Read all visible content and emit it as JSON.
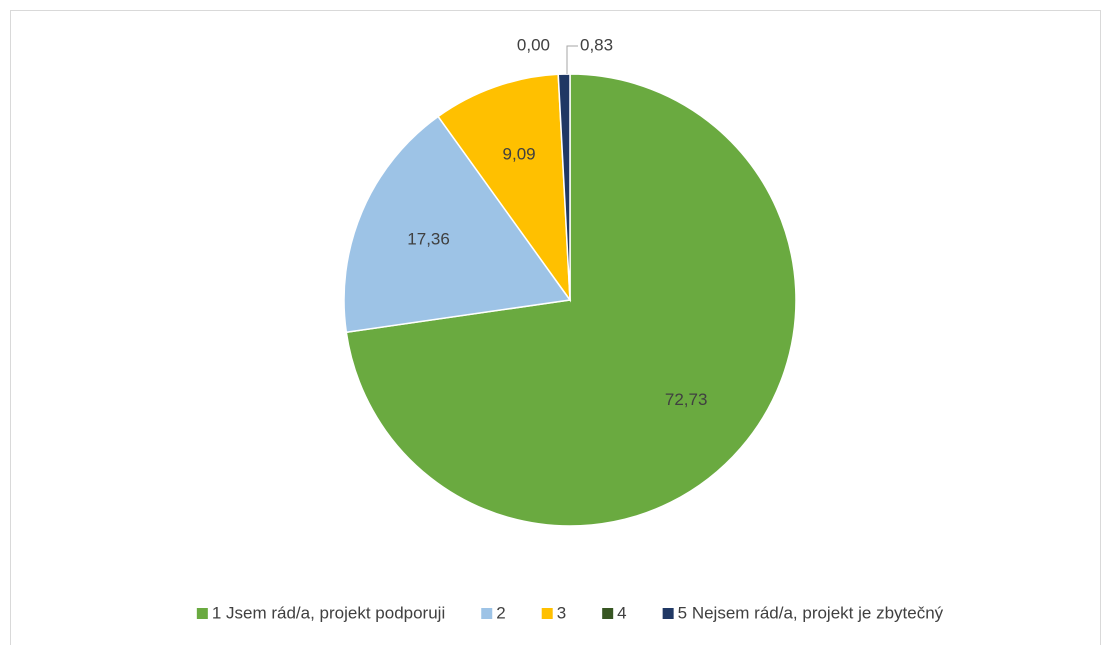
{
  "chart_data": {
    "type": "pie",
    "categories": [
      "1 Jsem rád/a, projekt podporuji",
      "2",
      "3",
      "4",
      "5 Nejsem rád/a, projekt je zbytečný"
    ],
    "values": [
      72.73,
      17.36,
      9.09,
      0.0,
      0.83
    ],
    "value_labels": [
      "72,73",
      "17,36",
      "9,09",
      "0,00",
      "0,83"
    ],
    "colors": [
      "#6aaa40",
      "#9dc3e6",
      "#ffc000",
      "#375623",
      "#203864"
    ],
    "legend": "bottom"
  }
}
